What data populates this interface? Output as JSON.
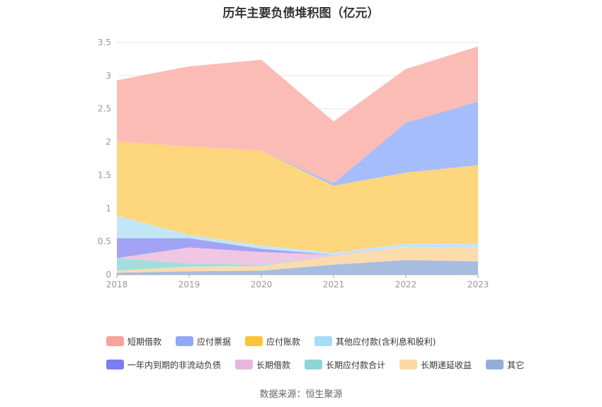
{
  "chart_data": {
    "type": "area",
    "stacked": true,
    "title": "历年主要负债堆积图（亿元）",
    "x": [
      "2018",
      "2019",
      "2020",
      "2021",
      "2022",
      "2023"
    ],
    "ylim": [
      0,
      3.5
    ],
    "yticks": [
      "0",
      "0.5",
      "1",
      "1.5",
      "2",
      "2.5",
      "3",
      "3.5"
    ],
    "grid": true,
    "legend_position": "bottom",
    "series": [
      {
        "name": "其它",
        "color": "#a6bde0",
        "values": [
          0.03,
          0.05,
          0.06,
          0.15,
          0.22,
          0.2
        ]
      },
      {
        "name": "长期递延收益",
        "color": "#fcdcad",
        "values": [
          0.03,
          0.07,
          0.07,
          0.13,
          0.2,
          0.2
        ]
      },
      {
        "name": "长期应付款合计",
        "color": "#a3dede",
        "values": [
          0.19,
          0.05,
          0.02,
          0.0,
          0.0,
          0.0
        ]
      },
      {
        "name": "长期借款",
        "color": "#efc7e3",
        "values": [
          0.0,
          0.24,
          0.19,
          0.02,
          0.0,
          0.0
        ]
      },
      {
        "name": "一年内到期的非流动负债",
        "color": "#a2a3f4",
        "values": [
          0.3,
          0.14,
          0.05,
          0.0,
          0.0,
          0.0
        ]
      },
      {
        "name": "其他应付款(含利息和股利)",
        "color": "#c3e6f7",
        "values": [
          0.34,
          0.05,
          0.05,
          0.03,
          0.05,
          0.06
        ]
      },
      {
        "name": "应付账款",
        "color": "#fdd67e",
        "values": [
          1.12,
          1.33,
          1.43,
          1.01,
          1.07,
          1.19
        ]
      },
      {
        "name": "应付票据",
        "color": "#a6bdfc",
        "values": [
          0.0,
          0.0,
          0.0,
          0.04,
          0.75,
          0.96
        ]
      },
      {
        "name": "短期借款",
        "color": "#fbbcb6",
        "values": [
          0.92,
          1.21,
          1.37,
          0.93,
          0.81,
          0.83
        ]
      }
    ]
  },
  "legend": {
    "row1": [
      {
        "label": "短期借款",
        "color": "#f7a39c"
      },
      {
        "label": "应付票据",
        "color": "#8fa9f7"
      },
      {
        "label": "应付账款",
        "color": "#fcc23c"
      },
      {
        "label": "其他应付款(含利息和股利)",
        "color": "#a6dcf5"
      }
    ],
    "row2": [
      {
        "label": "一年内到期的非流动负债",
        "color": "#7b7ef0"
      },
      {
        "label": "长期借款",
        "color": "#e9b6db"
      },
      {
        "label": "长期应付款合计",
        "color": "#8dd4d4"
      },
      {
        "label": "长期递延收益",
        "color": "#fcd8a4"
      },
      {
        "label": "其它",
        "color": "#93add8"
      }
    ]
  },
  "source": "数据来源：恒生聚源"
}
